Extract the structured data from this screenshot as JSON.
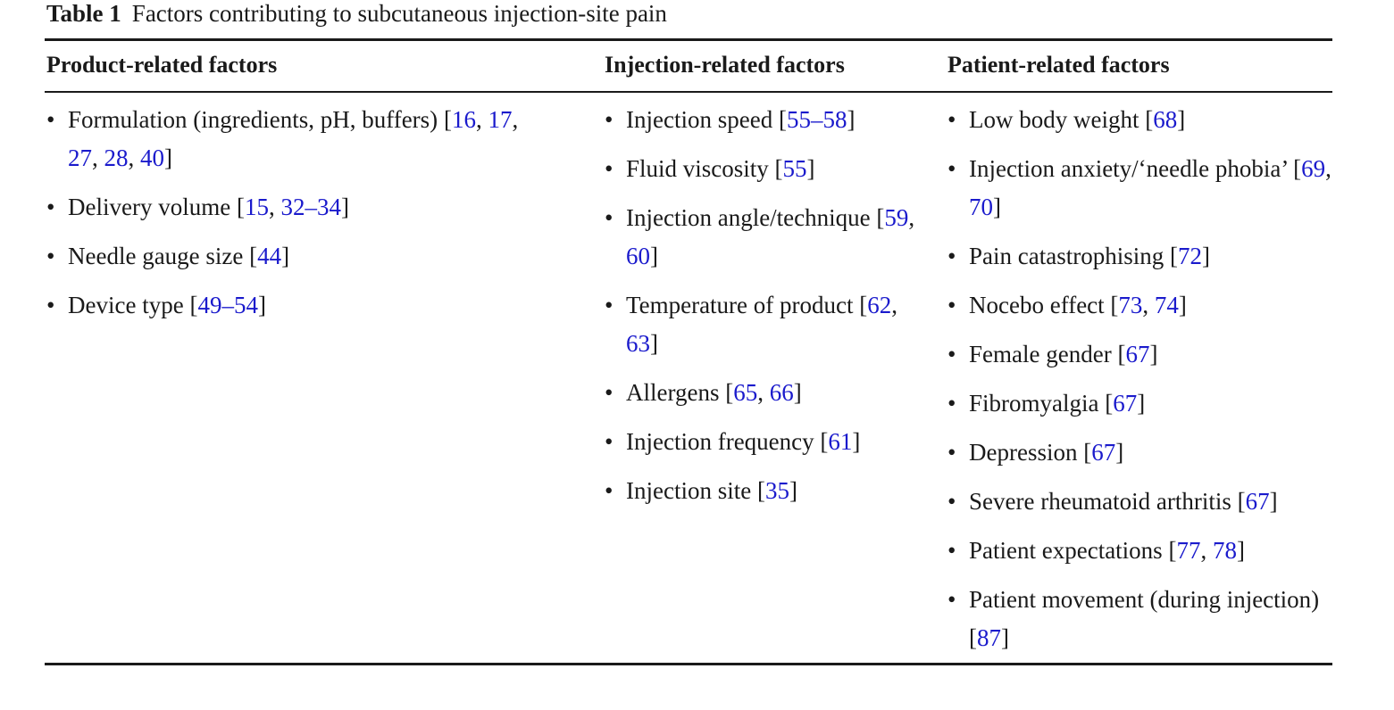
{
  "table": {
    "label": "Table 1",
    "title": "Factors contributing to subcutaneous injection-site pain",
    "columns": [
      {
        "header": "Product-related factors",
        "items": [
          {
            "text": "Formulation (ingredients, pH, buffers)",
            "refs": [
              "16",
              "17",
              "27",
              "28",
              "40"
            ]
          },
          {
            "text": "Delivery volume",
            "refs": [
              "15",
              "32–34"
            ]
          },
          {
            "text": "Needle gauge size",
            "refs": [
              "44"
            ]
          },
          {
            "text": "Device type",
            "refs": [
              "49–54"
            ]
          }
        ]
      },
      {
        "header": "Injection-related factors",
        "items": [
          {
            "text": "Injection speed",
            "refs": [
              "55–58"
            ]
          },
          {
            "text": "Fluid viscosity",
            "refs": [
              "55"
            ]
          },
          {
            "text": "Injection angle/technique",
            "refs": [
              "59",
              "60"
            ]
          },
          {
            "text": "Temperature of product",
            "refs": [
              "62",
              "63"
            ]
          },
          {
            "text": "Allergens",
            "refs": [
              "65",
              "66"
            ]
          },
          {
            "text": "Injection frequency",
            "refs": [
              "61"
            ]
          },
          {
            "text": "Injection site",
            "refs": [
              "35"
            ]
          }
        ]
      },
      {
        "header": "Patient-related factors",
        "items": [
          {
            "text": "Low body weight",
            "refs": [
              "68"
            ]
          },
          {
            "text": "Injection anxiety/‘needle phobia’",
            "refs": [
              "69",
              "70"
            ]
          },
          {
            "text": "Pain catastrophising",
            "refs": [
              "72"
            ]
          },
          {
            "text": "Nocebo effect",
            "refs": [
              "73",
              "74"
            ]
          },
          {
            "text": "Female gender",
            "refs": [
              "67"
            ]
          },
          {
            "text": "Fibromyalgia",
            "refs": [
              "67"
            ]
          },
          {
            "text": "Depression",
            "refs": [
              "67"
            ]
          },
          {
            "text": "Severe rheumatoid arthritis",
            "refs": [
              "67"
            ]
          },
          {
            "text": "Patient expectations",
            "refs": [
              "77",
              "78"
            ]
          },
          {
            "text": "Patient movement (during injection)",
            "refs": [
              "87"
            ]
          }
        ]
      }
    ]
  },
  "colors": {
    "text": "#1a1a1a",
    "reference_link": "#1a1acc"
  }
}
